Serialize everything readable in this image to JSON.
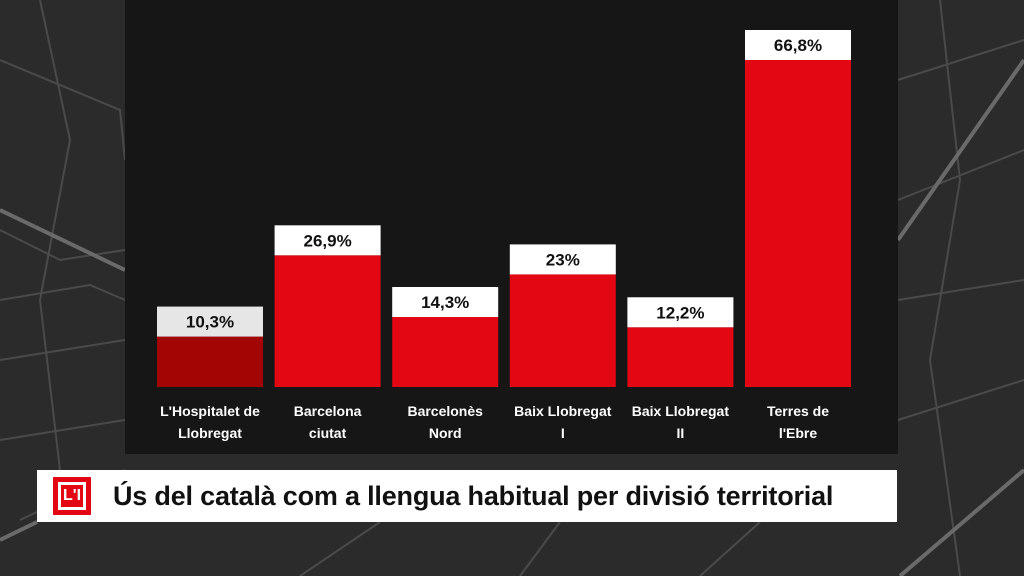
{
  "title": "Ús del català com a llengua habitual per divisió territorial",
  "logo": {
    "name": "L1-logo",
    "color": "#e30613"
  },
  "colors": {
    "bar": "#e30613",
    "bar_highlight": "#a30404",
    "label_box": "#ffffff",
    "label_box_highlight": "#e6e6e6"
  },
  "chart_data": {
    "type": "bar",
    "title": "Ús del català com a llengua habitual per divisió territorial",
    "categories": [
      [
        "L'Hospitalet de",
        "Llobregat"
      ],
      [
        "Barcelona",
        "ciutat"
      ],
      [
        "Barcelonès",
        "Nord"
      ],
      [
        "Baix Llobregat",
        "I"
      ],
      [
        "Baix Llobregat",
        "II"
      ],
      [
        "Terres de",
        "l'Ebre"
      ]
    ],
    "values": [
      10.3,
      26.9,
      14.3,
      23,
      12.2,
      66.8
    ],
    "value_labels": [
      "10,3%",
      "26,9%",
      "14,3%",
      "23%",
      "12,2%",
      "66,8%"
    ],
    "highlight_index": 0,
    "ylim": [
      0,
      66.8
    ],
    "xlabel": "",
    "ylabel": "",
    "grid": false
  }
}
